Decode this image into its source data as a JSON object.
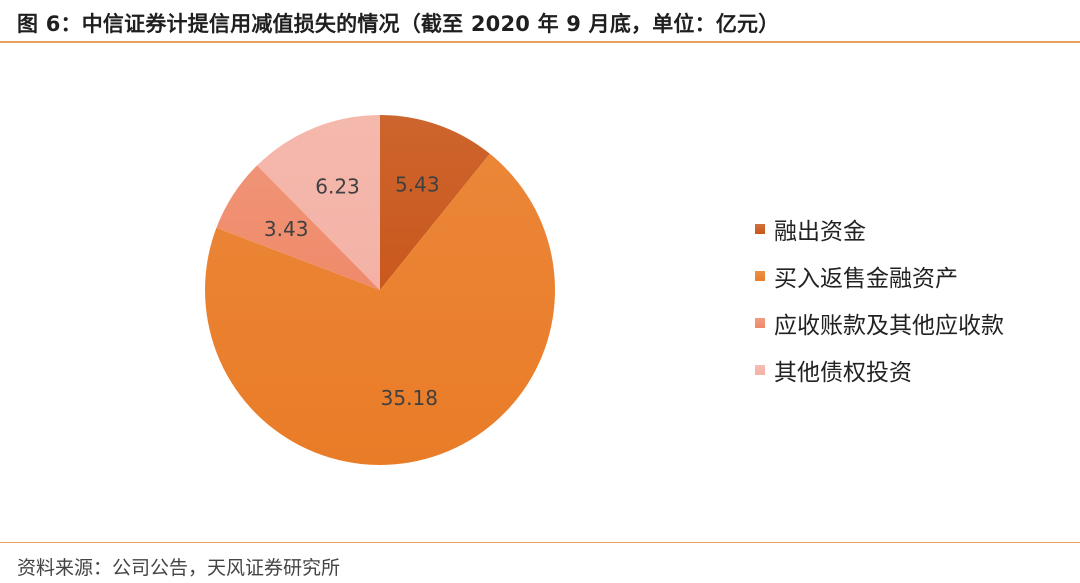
{
  "header": {
    "title": "图 6：中信证券计提信用减值损失的情况（截至 2020 年 9 月底，单位：亿元）"
  },
  "footer": {
    "source": "资料来源：公司公告，天风证券研究所"
  },
  "chart_data": {
    "type": "pie",
    "title": "图 6：中信证券计提信用减值损失的情况（截至 2020 年 9 月底，单位：亿元）",
    "unit": "亿元",
    "categories": [
      "融出资金",
      "买入返售金融资产",
      "应收账款及其他应收款",
      "其他债权投资"
    ],
    "values": [
      5.43,
      35.18,
      3.43,
      6.23
    ],
    "value_labels": [
      "5.43",
      "35.18",
      "3.43",
      "6.23"
    ],
    "colors": [
      "#c9581c",
      "#e97c27",
      "#ef8a6a",
      "#f4b2a6"
    ],
    "start_angle_deg": 0,
    "direction": "clockwise",
    "legend_position": "right"
  }
}
